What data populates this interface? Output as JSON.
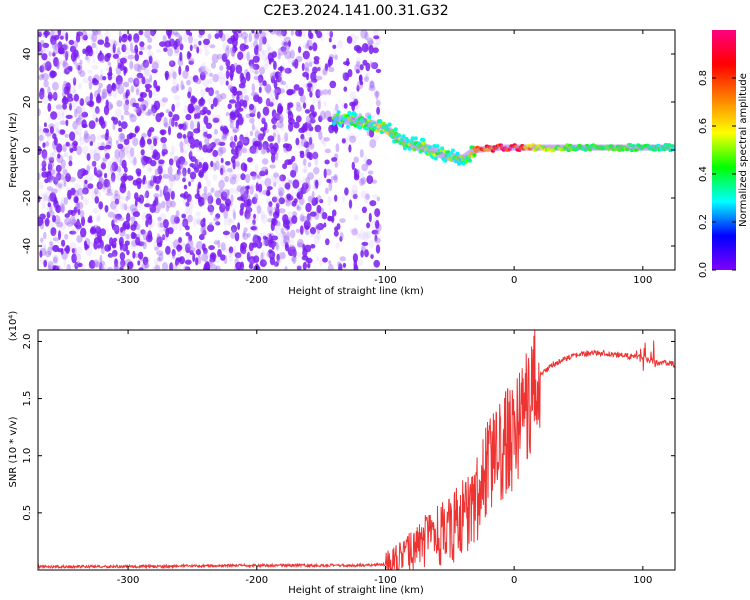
{
  "chart_data": [
    {
      "type": "heatmap",
      "title": "C2E3.2024.141.00.31.G32",
      "xlabel": "Height of straight line (km)",
      "ylabel": "Frequency (Hz)",
      "xlim": [
        -370,
        125
      ],
      "ylim": [
        -50,
        50
      ],
      "xticks": [
        -300,
        -200,
        -100,
        0,
        100
      ],
      "xtick_labels": [
        "-300",
        "-200",
        "-100",
        "0",
        "100"
      ],
      "yticks": [
        -40,
        -20,
        0,
        20,
        40
      ],
      "ytick_labels": [
        "-40",
        "-20",
        "0",
        "20",
        "40"
      ],
      "colorbar": {
        "label": "Normalized spectral amplitude",
        "range": [
          0,
          1
        ],
        "ticks": [
          0.0,
          0.2,
          0.4,
          0.6,
          0.8
        ],
        "tick_labels": [
          "0.0",
          "0.2",
          "0.4",
          "0.6",
          "0.8"
        ],
        "stops": [
          "#7f00ff",
          "#0000ff",
          "#00ffff",
          "#00ff00",
          "#ffff00",
          "#ff8000",
          "#ff0000",
          "#ff0080"
        ]
      },
      "noise_region_x": [
        -370,
        -110
      ],
      "signal_track": [
        {
          "x": -140,
          "freq": 13,
          "amp": 0.45
        },
        {
          "x": -120,
          "freq": 12,
          "amp": 0.5
        },
        {
          "x": -100,
          "freq": 9,
          "amp": 0.55
        },
        {
          "x": -85,
          "freq": 3,
          "amp": 0.5
        },
        {
          "x": -70,
          "freq": 1,
          "amp": 0.5
        },
        {
          "x": -55,
          "freq": -2,
          "amp": 0.5
        },
        {
          "x": -40,
          "freq": -4,
          "amp": 0.45
        },
        {
          "x": -30,
          "freq": 0,
          "amp": 0.7
        },
        {
          "x": -10,
          "freq": 1,
          "amp": 0.95
        },
        {
          "x": 0,
          "freq": 1,
          "amp": 0.9
        },
        {
          "x": 20,
          "freq": 1,
          "amp": 0.55
        },
        {
          "x": 50,
          "freq": 1,
          "amp": 0.4
        },
        {
          "x": 80,
          "freq": 1,
          "amp": 0.45
        },
        {
          "x": 100,
          "freq": 1,
          "amp": 0.4
        },
        {
          "x": 125,
          "freq": 1,
          "amp": 0.35
        }
      ]
    },
    {
      "type": "line",
      "xlabel": "Height of straight line (km)",
      "ylabel": "SNR (10 * v/v)",
      "scale_label": "(x10⁴)",
      "xlim": [
        -370,
        125
      ],
      "ylim": [
        0,
        2.1
      ],
      "xticks": [
        -300,
        -200,
        -100,
        0,
        100
      ],
      "xtick_labels": [
        "-300",
        "-200",
        "-100",
        "0",
        "100"
      ],
      "yticks": [
        0.5,
        1.0,
        1.5,
        2.0
      ],
      "ytick_labels": [
        "0.5",
        "1.0",
        "1.5",
        "2.0"
      ],
      "line_color": "#ee3333",
      "series": [
        {
          "name": "SNR",
          "x": [
            -370,
            -300,
            -200,
            -150,
            -120,
            -100,
            -90,
            -80,
            -70,
            -60,
            -50,
            -40,
            -30,
            -20,
            -10,
            0,
            10,
            20,
            30,
            40,
            50,
            60,
            70,
            80,
            90,
            100,
            110,
            125
          ],
          "y": [
            0.03,
            0.03,
            0.04,
            0.04,
            0.04,
            0.05,
            0.08,
            0.15,
            0.25,
            0.3,
            0.35,
            0.45,
            0.6,
            0.9,
            1.05,
            1.2,
            1.45,
            1.7,
            1.8,
            1.85,
            1.88,
            1.9,
            1.9,
            1.88,
            1.87,
            1.85,
            1.82,
            1.8
          ]
        }
      ]
    }
  ]
}
